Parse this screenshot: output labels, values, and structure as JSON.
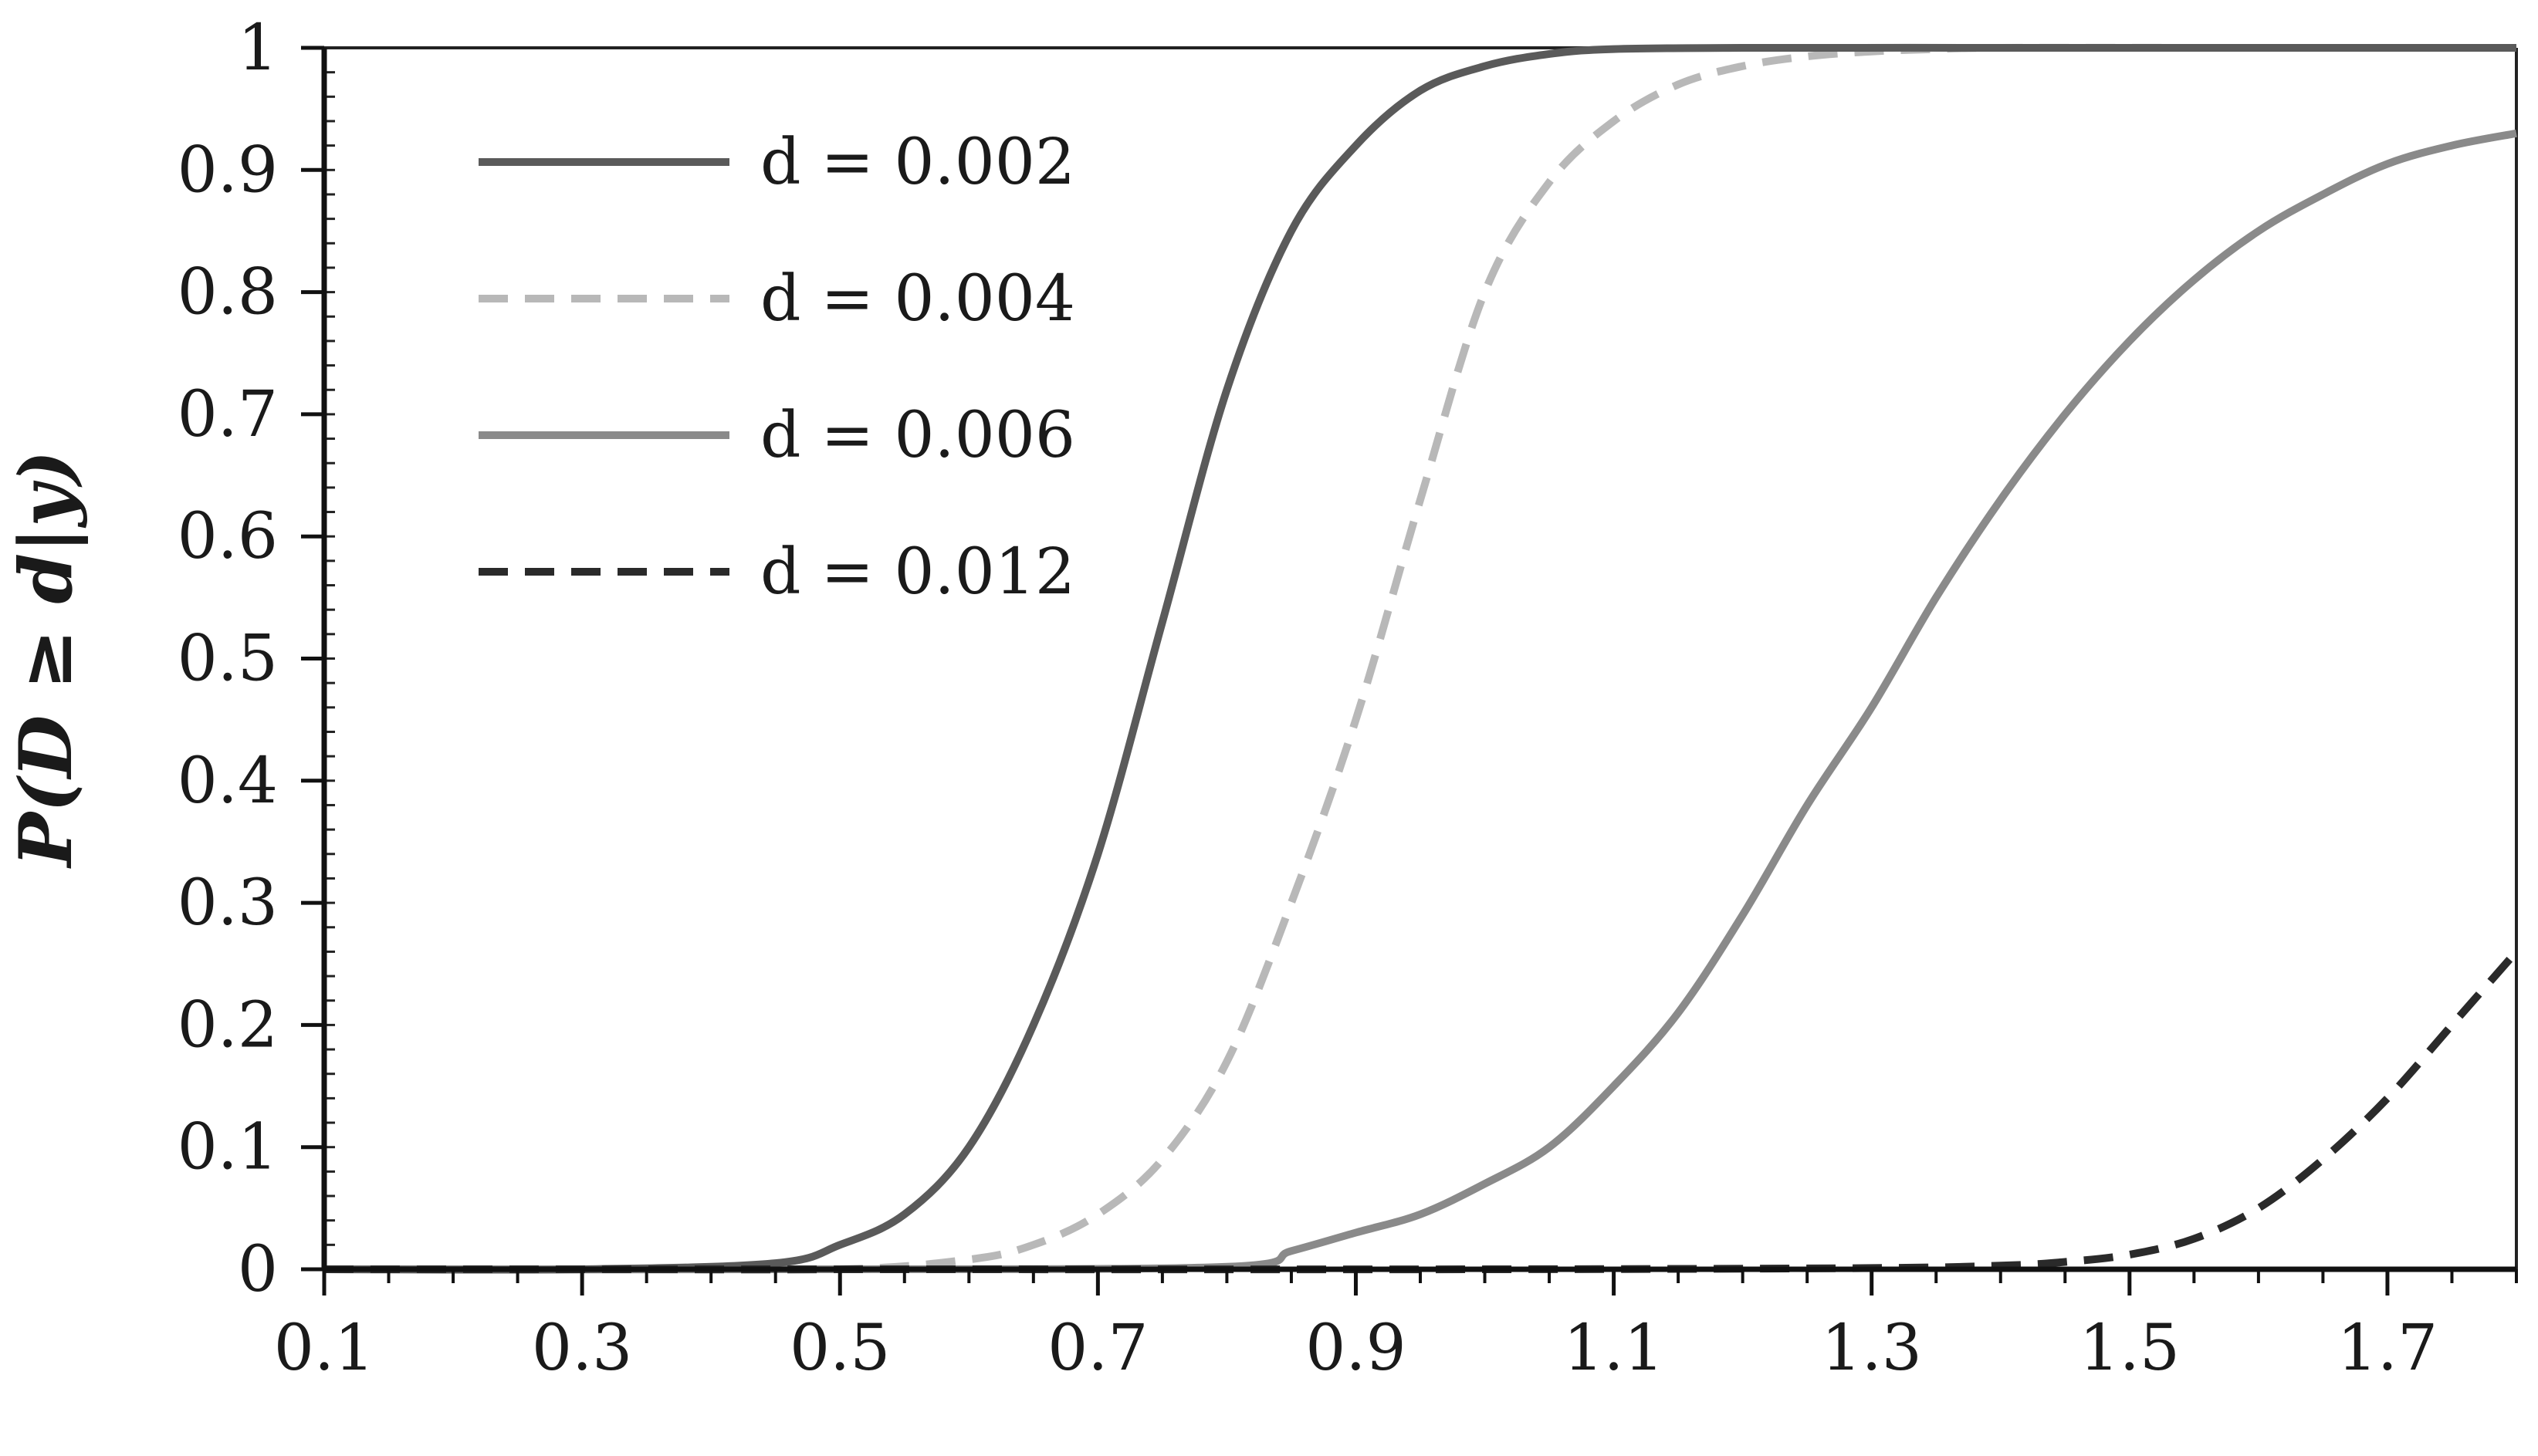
{
  "chart_data": {
    "type": "line",
    "title": "",
    "xlabel": "",
    "ylabel": "P(D ≥ d|y)",
    "xlim": [
      0.1,
      1.8
    ],
    "ylim": [
      0,
      1
    ],
    "x_ticks": [
      "0.1",
      "0.3",
      "0.5",
      "0.7",
      "0.9",
      "1.1",
      "1.3",
      "1.5",
      "1.7"
    ],
    "y_ticks": [
      "0",
      "0.1",
      "0.2",
      "0.3",
      "0.4",
      "0.5",
      "0.6",
      "0.7",
      "0.8",
      "0.9",
      "1"
    ],
    "grid": false,
    "legend_position": "top-left",
    "series": [
      {
        "name": "d = 0.002",
        "color": "#5a5a5a",
        "dash": "solid",
        "x": [
          0.1,
          0.3,
          0.45,
          0.5,
          0.55,
          0.6,
          0.65,
          0.7,
          0.75,
          0.8,
          0.85,
          0.9,
          0.95,
          1.0,
          1.05,
          1.1,
          1.2,
          1.4,
          1.6,
          1.8
        ],
        "y": [
          0,
          0,
          0.005,
          0.02,
          0.045,
          0.1,
          0.2,
          0.34,
          0.53,
          0.72,
          0.85,
          0.92,
          0.965,
          0.985,
          0.995,
          0.999,
          1,
          1,
          1,
          1
        ]
      },
      {
        "name": "d = 0.004",
        "color": "#b8b8b8",
        "dash": "dashed",
        "x": [
          0.1,
          0.3,
          0.5,
          0.6,
          0.65,
          0.7,
          0.75,
          0.8,
          0.85,
          0.9,
          0.95,
          1.0,
          1.05,
          1.1,
          1.15,
          1.2,
          1.25,
          1.3,
          1.35,
          1.4,
          1.6,
          1.8
        ],
        "y": [
          0,
          0,
          0,
          0.008,
          0.02,
          0.045,
          0.09,
          0.17,
          0.3,
          0.45,
          0.63,
          0.8,
          0.89,
          0.94,
          0.97,
          0.985,
          0.993,
          0.997,
          0.999,
          1,
          1,
          1
        ]
      },
      {
        "name": "d = 0.006",
        "color": "#8a8a8a",
        "dash": "solid",
        "x": [
          0.1,
          0.5,
          0.8,
          0.85,
          0.9,
          0.95,
          1.0,
          1.05,
          1.1,
          1.15,
          1.2,
          1.25,
          1.3,
          1.35,
          1.4,
          1.45,
          1.5,
          1.55,
          1.6,
          1.65,
          1.7,
          1.75,
          1.8
        ],
        "y": [
          0,
          0,
          0.002,
          0.015,
          0.03,
          0.045,
          0.07,
          0.1,
          0.15,
          0.21,
          0.29,
          0.38,
          0.46,
          0.55,
          0.63,
          0.7,
          0.76,
          0.81,
          0.85,
          0.88,
          0.905,
          0.92,
          0.93
        ]
      },
      {
        "name": "d = 0.012",
        "color": "#2a2a2a",
        "dash": "dashed",
        "x": [
          0.1,
          0.5,
          1.0,
          1.3,
          1.4,
          1.45,
          1.5,
          1.55,
          1.6,
          1.65,
          1.7,
          1.75,
          1.8
        ],
        "y": [
          0,
          0,
          0,
          0.001,
          0.003,
          0.006,
          0.012,
          0.025,
          0.05,
          0.09,
          0.14,
          0.2,
          0.26
        ]
      }
    ]
  }
}
